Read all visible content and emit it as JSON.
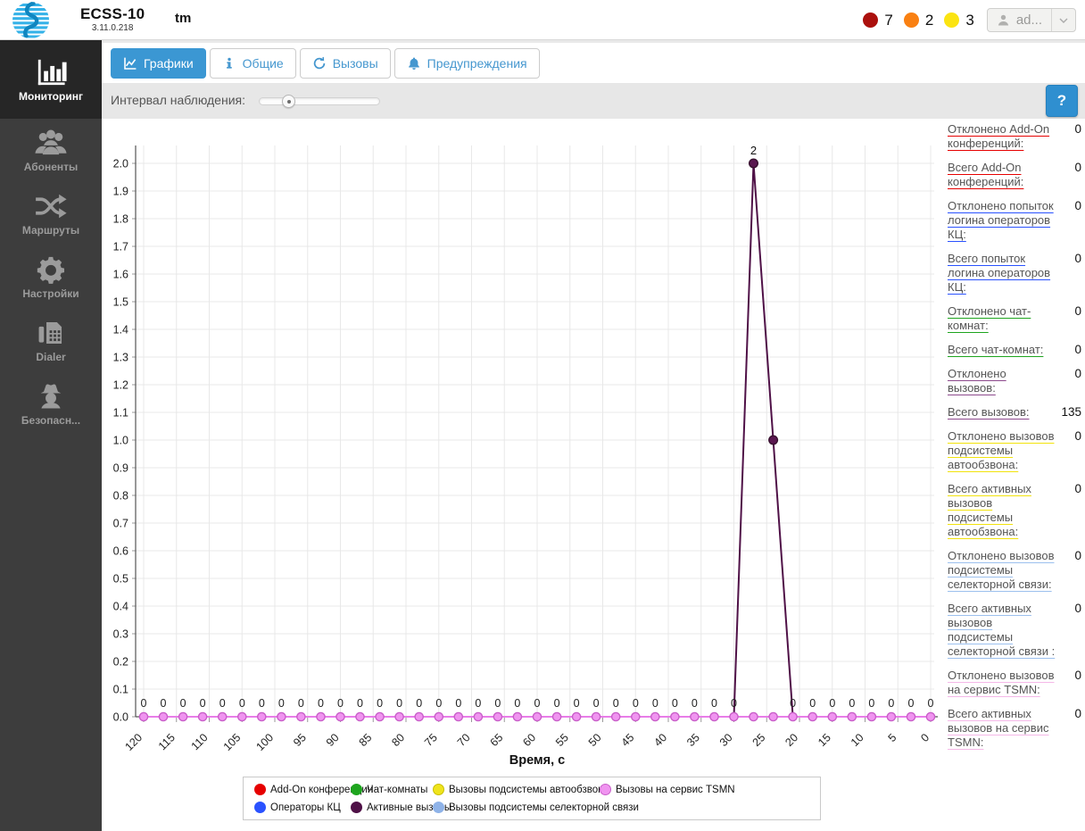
{
  "header": {
    "app_name": "ECSS-10",
    "version": "3.11.0.218",
    "instance": "tm",
    "alerts": [
      {
        "level": "critical",
        "color": "#ab100d",
        "count": "7"
      },
      {
        "level": "major",
        "color": "#f98012",
        "count": "2"
      },
      {
        "level": "minor",
        "color": "#fbe412",
        "count": "3"
      }
    ],
    "user": {
      "label": "ad..."
    }
  },
  "sidebar": {
    "items": [
      {
        "id": "monitoring",
        "label": "Мониторинг",
        "icon": "monitoring",
        "active": true
      },
      {
        "id": "subscribers",
        "label": "Абоненты",
        "icon": "users",
        "active": false
      },
      {
        "id": "routes",
        "label": "Маршруты",
        "icon": "shuffle",
        "active": false
      },
      {
        "id": "settings",
        "label": "Настройки",
        "icon": "gear",
        "active": false
      },
      {
        "id": "dialer",
        "label": "Dialer",
        "icon": "dialer",
        "active": false
      },
      {
        "id": "security",
        "label": "Безопасн...",
        "icon": "spy",
        "active": false
      }
    ]
  },
  "tabs": [
    {
      "id": "charts",
      "label": "Графики",
      "icon": "chart",
      "active": true
    },
    {
      "id": "general",
      "label": "Общие",
      "icon": "info",
      "active": false
    },
    {
      "id": "calls",
      "label": "Вызовы",
      "icon": "history",
      "active": false
    },
    {
      "id": "warnings",
      "label": "Предупреждения",
      "icon": "bell",
      "active": false
    }
  ],
  "toolbar": {
    "interval_label": "Интервал наблюдения:",
    "slider_pos_percent": 24,
    "help_label": "?"
  },
  "stats": [
    {
      "label": "Отклонено Add-On конференций:",
      "value": "0",
      "color": "#e60000"
    },
    {
      "label": "Всего Add-On конференций:",
      "value": "0",
      "color": "#e60000"
    },
    {
      "label": "Отклонено попыток логина операторов КЦ:",
      "value": "0",
      "color": "#2a52ff"
    },
    {
      "label": "Всего попыток логина операторов КЦ:",
      "value": "0",
      "color": "#2a52ff"
    },
    {
      "label": "Отклонено чат-комнат:",
      "value": "0",
      "color": "#1ea51e"
    },
    {
      "label": "Всего чат-комнат:",
      "value": "0",
      "color": "#1ea51e"
    },
    {
      "label": "Отклонено вызовов:",
      "value": "0",
      "color": "#8d4a8d"
    },
    {
      "label": "Всего вызовов:",
      "value": "135",
      "color": "#8d4a8d"
    },
    {
      "label": "Отклонено вызовов подсистемы автообзвона:",
      "value": "0",
      "color": "#f2e30c"
    },
    {
      "label": "Всего активных вызовов подсистемы автообзвона:",
      "value": "0",
      "color": "#f2e30c"
    },
    {
      "label": "Отклонено вызовов подсистемы селекторной связи:",
      "value": "0",
      "color": "#9cc0ee"
    },
    {
      "label": "Всего активных вызовов подсистемы селекторной связи :",
      "value": "0",
      "color": "#9cc0ee"
    },
    {
      "label": "Отклонено вызовов на сервис TSMN:",
      "value": "0",
      "color": "#f5b8e8"
    },
    {
      "label": "Всего активных вызовов на сервис TSMN:",
      "value": "0",
      "color": "#f5b8e8"
    }
  ],
  "chart_data": {
    "type": "line",
    "xlabel": "Время, с",
    "x_min": 0,
    "x_max": 120,
    "x_tick_step": 5,
    "sample_step": 3,
    "ylim": [
      0.0,
      2.0
    ],
    "y_tick_step": 0.1,
    "grid": true,
    "series": [
      {
        "name": "Add-On конференции",
        "color": "#e60000",
        "baseline": 0,
        "points": []
      },
      {
        "name": "Операторы КЦ",
        "color": "#2a52ff",
        "baseline": 0,
        "points": []
      },
      {
        "name": "Чат-комнаты",
        "color": "#1ea51e",
        "baseline": 0,
        "points": []
      },
      {
        "name": "Вызовы подсистемы автообзвона",
        "color": "#efe41c",
        "baseline": 0,
        "points": []
      },
      {
        "name": "Вызовы подсистемы селекторной связи",
        "color": "#8fb3e8",
        "baseline": 0,
        "points": []
      },
      {
        "name": "Активные вызовы",
        "color": "#4f1147",
        "baseline": 0,
        "markers": "nonzero",
        "marker_fill": "#5a1750",
        "marker_border": "#38102f",
        "points": [
          {
            "t": 27,
            "v": 2
          },
          {
            "t": 24,
            "v": 1
          }
        ],
        "point_labels": [
          {
            "t": 27,
            "text": "2"
          }
        ]
      },
      {
        "name": "Вызовы на сервис TSMN",
        "color": "#e87de8",
        "baseline": 0,
        "markers": "all",
        "marker_fill": "#f094f0",
        "marker_border": "#c95fc9",
        "value_labels": true,
        "points": []
      }
    ],
    "value_label_skip_t": [
      27,
      24
    ]
  },
  "legend": {
    "rows": [
      [
        {
          "label": "Add-On конференции",
          "color": "#e60000"
        },
        {
          "label": "Чат-комнаты",
          "color": "#1ea51e"
        },
        {
          "label": "Вызовы подсистемы автообзвона",
          "color": "#efe41c",
          "border": "#c9bf00"
        },
        {
          "label": "Вызовы на сервис TSMN",
          "color": "#f094f0",
          "border": "#c95fc9"
        }
      ],
      [
        {
          "label": "Операторы КЦ",
          "color": "#2a52ff"
        },
        {
          "label": "Активные вызовы",
          "color": "#4f1147"
        },
        {
          "label": "Вызовы подсистемы селекторной связи",
          "color": "#8fb3e8"
        }
      ]
    ]
  }
}
